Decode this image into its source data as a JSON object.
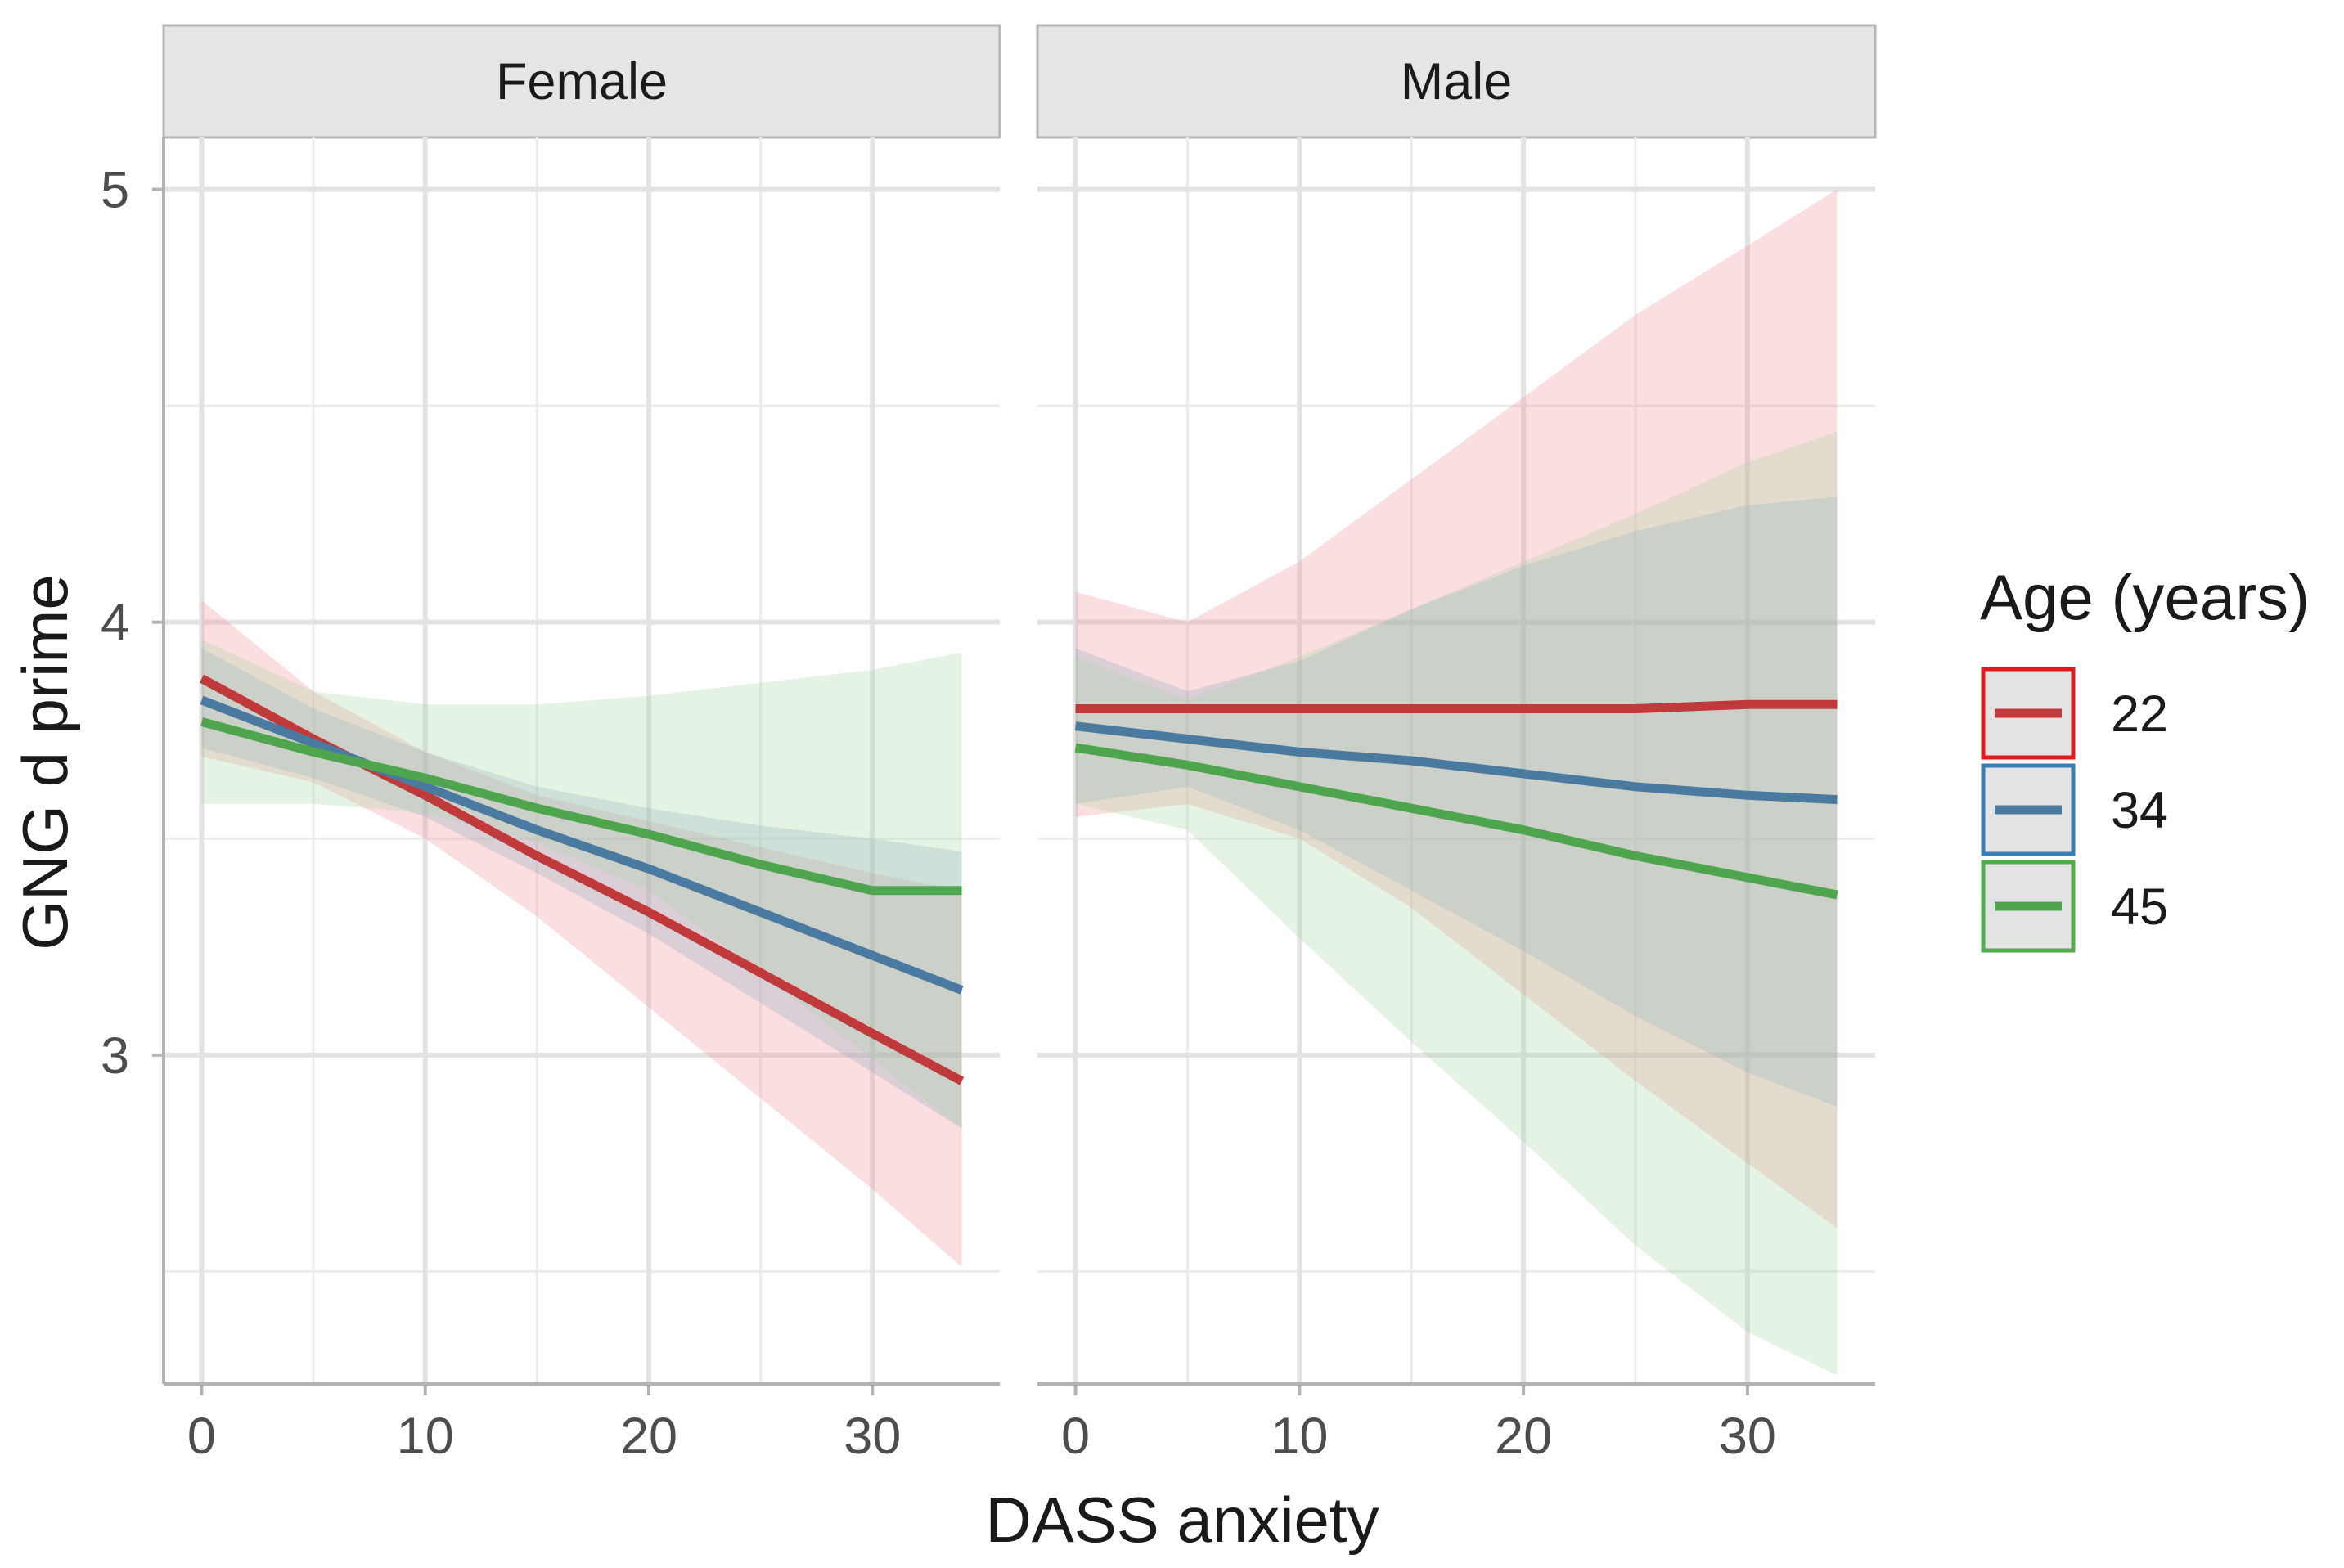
{
  "chart_data": {
    "type": "line",
    "xlabel": "DASS anxiety",
    "ylabel": "GNG d prime",
    "xlim": [
      -1.7,
      35.7
    ],
    "ylim": [
      2.24,
      5.12
    ],
    "x_ticks": [
      0,
      10,
      20,
      30
    ],
    "x_minor": [
      5,
      15,
      25
    ],
    "y_ticks": [
      3,
      4,
      5
    ],
    "y_minor": [
      2.5,
      3.5,
      4.5
    ],
    "grid": true,
    "legend": {
      "title": "Age (years)",
      "placement": "right",
      "entries": [
        "22",
        "34",
        "45"
      ]
    },
    "colors": {
      "22": "#c0393b",
      "34": "#4a7aa0",
      "45": "#4ea54d"
    },
    "band_colors": {
      "22": "#f08a8f",
      "34": "#8aa8c2",
      "45": "#a3d4a1"
    },
    "legend_box_colors": {
      "22": "#e41a1c",
      "34": "#377eb8",
      "45": "#4daf4a"
    },
    "panels": [
      {
        "label": "Female",
        "series": [
          {
            "name": "22",
            "x": [
              0,
              5,
              10,
              15,
              20,
              25,
              30,
              34
            ],
            "y": [
              3.87,
              3.73,
              3.6,
              3.46,
              3.33,
              3.19,
              3.05,
              2.94
            ],
            "lower": [
              3.69,
              3.63,
              3.5,
              3.32,
              3.11,
              2.9,
              2.69,
              2.51
            ],
            "upper": [
              4.05,
              3.84,
              3.7,
              3.6,
              3.54,
              3.48,
              3.42,
              3.38
            ]
          },
          {
            "name": "34",
            "x": [
              0,
              5,
              10,
              15,
              20,
              25,
              30,
              34
            ],
            "y": [
              3.82,
              3.72,
              3.62,
              3.52,
              3.43,
              3.33,
              3.23,
              3.15
            ],
            "lower": [
              3.71,
              3.64,
              3.55,
              3.42,
              3.28,
              3.12,
              2.96,
              2.83
            ],
            "upper": [
              3.94,
              3.8,
              3.7,
              3.62,
              3.57,
              3.53,
              3.5,
              3.47
            ]
          },
          {
            "name": "45",
            "x": [
              0,
              5,
              10,
              15,
              20,
              25,
              30,
              34
            ],
            "y": [
              3.77,
              3.7,
              3.64,
              3.57,
              3.51,
              3.44,
              3.38,
              3.38
            ],
            "lower": [
              3.58,
              3.58,
              3.56,
              3.49,
              3.38,
              3.19,
              2.99,
              2.83
            ],
            "upper": [
              3.96,
              3.84,
              3.81,
              3.81,
              3.83,
              3.86,
              3.89,
              3.93
            ]
          }
        ]
      },
      {
        "label": "Male",
        "series": [
          {
            "name": "22",
            "x": [
              0,
              5,
              10,
              15,
              20,
              25,
              30,
              34
            ],
            "y": [
              3.8,
              3.8,
              3.8,
              3.8,
              3.8,
              3.8,
              3.81,
              3.81
            ],
            "lower": [
              3.55,
              3.58,
              3.5,
              3.34,
              3.14,
              2.94,
              2.75,
              2.6
            ],
            "upper": [
              4.07,
              4.0,
              4.14,
              4.33,
              4.52,
              4.71,
              4.87,
              5.0
            ]
          },
          {
            "name": "34",
            "x": [
              0,
              5,
              10,
              15,
              20,
              25,
              30,
              34
            ],
            "y": [
              3.76,
              3.73,
              3.7,
              3.68,
              3.65,
              3.62,
              3.6,
              3.59
            ],
            "lower": [
              3.58,
              3.62,
              3.52,
              3.38,
              3.24,
              3.09,
              2.96,
              2.88
            ],
            "upper": [
              3.94,
              3.84,
              3.91,
              4.03,
              4.13,
              4.21,
              4.27,
              4.29
            ]
          },
          {
            "name": "45",
            "x": [
              0,
              5,
              10,
              15,
              20,
              25,
              30,
              34
            ],
            "y": [
              3.71,
              3.67,
              3.62,
              3.57,
              3.52,
              3.46,
              3.41,
              3.37
            ],
            "lower": [
              3.58,
              3.52,
              3.27,
              3.03,
              2.8,
              2.56,
              2.36,
              2.26
            ],
            "upper": [
              3.92,
              3.82,
              3.92,
              4.03,
              4.14,
              4.25,
              4.37,
              4.44
            ]
          }
        ]
      }
    ]
  }
}
